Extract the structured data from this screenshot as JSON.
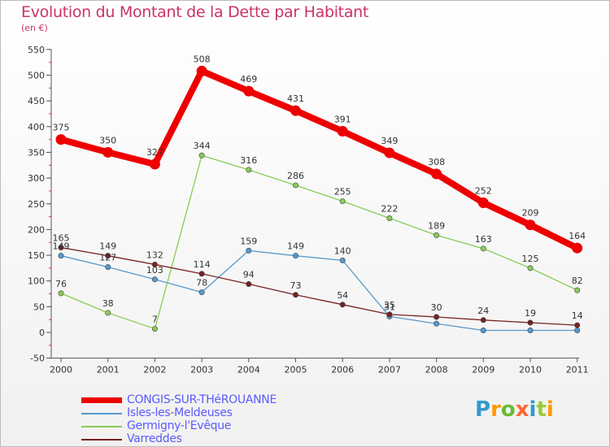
{
  "header": {
    "title": "Evolution du Montant de la Dette par Habitant",
    "unit": "(en €)"
  },
  "logo": {
    "letters": [
      "P",
      "r",
      "o",
      "x",
      "i",
      "t",
      "i"
    ],
    "colors": [
      "#3399cc",
      "#ff9900",
      "#66bb33",
      "#ff6633",
      "#3399cc",
      "#99cc33",
      "#ff9900"
    ]
  },
  "chart_data": {
    "type": "line",
    "title": "Evolution du Montant de la Dette par Habitant",
    "ylabel": "(en €)",
    "xlabel": "",
    "x": [
      "2000",
      "2001",
      "2002",
      "2003",
      "2004",
      "2005",
      "2006",
      "2007",
      "2008",
      "2009",
      "2010",
      "2011"
    ],
    "ylim": [
      -50,
      550
    ],
    "yticks": [
      -50,
      0,
      50,
      100,
      150,
      200,
      250,
      300,
      350,
      400,
      450,
      500,
      550
    ],
    "grid": false,
    "legend": "bottom-left",
    "series": [
      {
        "name": "CONGIS-SUR-THéROUANNE",
        "color": "#ee0000",
        "values": [
          375,
          350,
          327,
          508,
          469,
          431,
          391,
          349,
          308,
          252,
          209,
          164
        ],
        "labels": [
          "375",
          "350",
          "327",
          "508",
          "469",
          "431",
          "391",
          "349",
          "308",
          "252",
          "209",
          "164"
        ]
      },
      {
        "name": "Isles-les-Meldeuses",
        "color": "#5599cc",
        "values": [
          149,
          127,
          103,
          78,
          159,
          149,
          140,
          31,
          17,
          4,
          4,
          4
        ],
        "labels": [
          "149",
          "127",
          "103",
          "78",
          "159",
          "149",
          "140",
          "31",
          "",
          "",
          "",
          ""
        ]
      },
      {
        "name": "Germigny-l'Evêque",
        "color": "#88cc55",
        "values": [
          76,
          38,
          7,
          344,
          316,
          286,
          255,
          222,
          189,
          163,
          125,
          82
        ],
        "labels": [
          "76",
          "38",
          "7",
          "344",
          "316",
          "286",
          "255",
          "222",
          "189",
          "163",
          "125",
          "82"
        ]
      },
      {
        "name": "Varreddes",
        "color": "#772222",
        "values": [
          165,
          149,
          132,
          114,
          94,
          73,
          54,
          35,
          30,
          24,
          19,
          14
        ],
        "labels": [
          "165",
          "149",
          "132",
          "114",
          "94",
          "73",
          "54",
          "35",
          "30",
          "24",
          "19",
          "14"
        ]
      }
    ]
  }
}
